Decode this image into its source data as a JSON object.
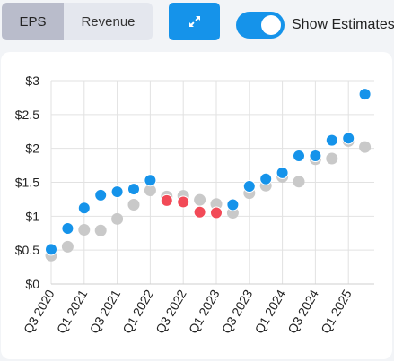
{
  "tabs": [
    {
      "label": "EPS",
      "active": true
    },
    {
      "label": "Revenue",
      "active": false
    }
  ],
  "expand_icon": "expand-arrows-icon",
  "estimates_toggle": {
    "label": "Show Estimates",
    "on": true
  },
  "colors": {
    "actual_beat": "#1593ea",
    "actual_miss": "#f24a57",
    "estimate": "#c9c9c9",
    "accent": "#1593ea"
  },
  "chart_data": {
    "type": "scatter",
    "title": "",
    "xlabel": "",
    "ylabel": "",
    "ylim": [
      0,
      3
    ],
    "y_ticks": [
      "$0",
      "$0.5",
      "$1",
      "$1.5",
      "$2",
      "$2.5",
      "$3"
    ],
    "x_tick_labels": [
      "Q3 2020",
      "Q1 2021",
      "Q3 2021",
      "Q1 2022",
      "Q3 2022",
      "Q1 2023",
      "Q3 2023",
      "Q1 2024",
      "Q3 2024",
      "Q1 2025"
    ],
    "categories": [
      "Q3 2020",
      "Q4 2020",
      "Q1 2021",
      "Q2 2021",
      "Q3 2021",
      "Q4 2021",
      "Q1 2022",
      "Q2 2022",
      "Q3 2022",
      "Q4 2022",
      "Q1 2023",
      "Q2 2023",
      "Q3 2023",
      "Q4 2023",
      "Q1 2024",
      "Q2 2024",
      "Q3 2024",
      "Q4 2024",
      "Q1 2025",
      "Q2 2025"
    ],
    "grid": true,
    "series": [
      {
        "key": "estimate",
        "values": [
          0.42,
          0.55,
          0.8,
          0.79,
          0.96,
          1.17,
          1.38,
          1.29,
          1.3,
          1.24,
          1.18,
          1.05,
          1.34,
          1.45,
          1.58,
          1.51,
          1.84,
          1.85,
          2.11,
          2.02
        ]
      },
      {
        "key": "actual",
        "values": [
          0.51,
          0.82,
          1.12,
          1.31,
          1.36,
          1.4,
          1.53,
          1.23,
          1.21,
          1.06,
          1.05,
          1.17,
          1.44,
          1.55,
          1.64,
          1.89,
          1.89,
          2.12,
          2.15,
          2.8
        ],
        "beat": [
          true,
          true,
          true,
          true,
          true,
          true,
          true,
          false,
          false,
          false,
          false,
          true,
          true,
          true,
          true,
          true,
          true,
          true,
          true,
          true
        ]
      }
    ]
  }
}
